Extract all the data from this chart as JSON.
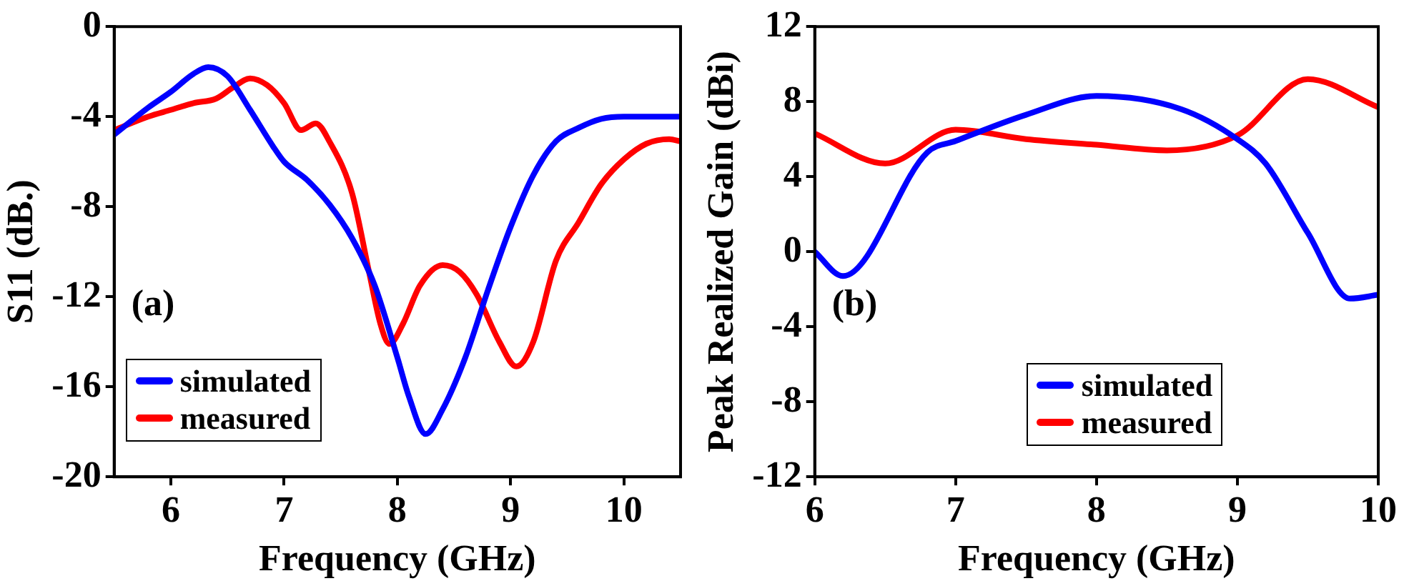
{
  "chart_data": [
    {
      "type": "line",
      "xlabel": "Frequency (GHz)",
      "ylabel": "S11 (dB.)",
      "annotations": [
        "(a)"
      ],
      "xlim": [
        5.5,
        10.5
      ],
      "xticks": [
        6,
        7,
        8,
        9,
        10
      ],
      "ylim": [
        -20,
        0
      ],
      "yticks": [
        -20,
        -16,
        -12,
        -8,
        -4,
        0
      ],
      "grid": false,
      "legend": "bottom left",
      "series": [
        {
          "name": "simulated",
          "color": "#0000ff",
          "x": [
            5.5,
            5.8,
            6.0,
            6.2,
            6.33,
            6.5,
            6.7,
            6.9,
            7.0,
            7.2,
            7.4,
            7.6,
            7.8,
            8.0,
            8.1,
            8.25,
            8.4,
            8.6,
            8.8,
            9.0,
            9.2,
            9.4,
            9.6,
            9.8,
            10.0,
            10.5
          ],
          "values": [
            -4.8,
            -3.6,
            -2.9,
            -2.1,
            -1.8,
            -2.2,
            -3.7,
            -5.3,
            -6.0,
            -6.8,
            -7.9,
            -9.4,
            -11.5,
            -14.7,
            -16.4,
            -18.1,
            -17.0,
            -14.7,
            -11.7,
            -8.9,
            -6.6,
            -5.1,
            -4.5,
            -4.1,
            -4.0,
            -4.0
          ]
        },
        {
          "name": "measured",
          "color": "#ff0000",
          "x": [
            5.5,
            5.8,
            6.0,
            6.2,
            6.4,
            6.55,
            6.7,
            6.85,
            7.0,
            7.15,
            7.28,
            7.4,
            7.6,
            7.75,
            7.85,
            7.93,
            8.05,
            8.2,
            8.4,
            8.55,
            8.7,
            8.9,
            9.05,
            9.2,
            9.4,
            9.6,
            9.8,
            10.0,
            10.2,
            10.4,
            10.5
          ],
          "values": [
            -4.6,
            -4.0,
            -3.7,
            -3.4,
            -3.2,
            -2.7,
            -2.3,
            -2.6,
            -3.4,
            -4.6,
            -4.3,
            -5.1,
            -7.4,
            -10.9,
            -13.2,
            -14.1,
            -13.2,
            -11.5,
            -10.6,
            -10.9,
            -11.9,
            -14.0,
            -15.1,
            -14.0,
            -10.4,
            -8.7,
            -7.0,
            -5.9,
            -5.2,
            -5.0,
            -5.1
          ]
        }
      ]
    },
    {
      "type": "line",
      "xlabel": "Frequency (GHz)",
      "ylabel": "Peak Realized Gain (dBi)",
      "annotations": [
        "(b)"
      ],
      "xlim": [
        6,
        10
      ],
      "xticks": [
        6,
        7,
        8,
        9,
        10
      ],
      "ylim": [
        -12,
        12
      ],
      "yticks": [
        -12,
        -8,
        -4,
        0,
        4,
        8,
        12
      ],
      "grid": false,
      "legend": "bottom",
      "series": [
        {
          "name": "simulated",
          "color": "#0000ff",
          "x": [
            6.0,
            6.2,
            6.8,
            7.0,
            7.5,
            8.0,
            8.6,
            9.0,
            9.2,
            9.5,
            9.8,
            10.0
          ],
          "values": [
            0,
            -1.3,
            5.3,
            5.9,
            7.3,
            8.3,
            7.6,
            6.0,
            4.7,
            1.0,
            -2.5,
            -2.3
          ]
        },
        {
          "name": "measured",
          "color": "#ff0000",
          "x": [
            6.0,
            6.5,
            7.0,
            7.5,
            8.0,
            8.5,
            9.0,
            9.5,
            10.0
          ],
          "values": [
            6.3,
            4.7,
            6.5,
            6.0,
            5.7,
            5.4,
            6.2,
            9.2,
            7.7
          ]
        }
      ]
    }
  ]
}
